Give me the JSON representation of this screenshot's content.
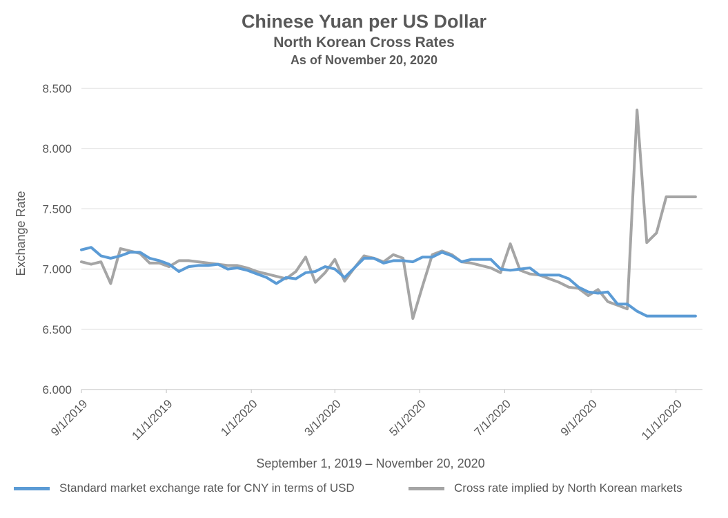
{
  "chart_data": {
    "type": "line",
    "title": "Chinese Yuan per US Dollar",
    "subtitle": "North Korean Cross Rates",
    "subtitle2": "As of November 20, 2020",
    "ylabel": "Exchange Rate",
    "xlabel": "September 1, 2019 – November 20, 2020",
    "ylim": [
      6.0,
      8.5
    ],
    "yticks": [
      "6.000",
      "6.500",
      "7.000",
      "7.500",
      "8.000",
      "8.500"
    ],
    "xticks": [
      "9/1/2019",
      "11/1/2019",
      "1/1/2020",
      "3/1/2020",
      "5/1/2020",
      "7/1/2020",
      "9/1/2020",
      "11/1/2020"
    ],
    "grid": true,
    "legend_position": "bottom",
    "x": [
      "2019-09-01",
      "2019-09-09",
      "2019-09-16",
      "2019-09-23",
      "2019-09-30",
      "2019-10-08",
      "2019-10-15",
      "2019-10-22",
      "2019-10-29",
      "2019-11-06",
      "2019-11-13",
      "2019-11-20",
      "2019-11-28",
      "2019-12-05",
      "2019-12-12",
      "2019-12-19",
      "2019-12-27",
      "2020-01-03",
      "2020-01-10",
      "2020-01-17",
      "2020-01-24",
      "2020-02-01",
      "2020-02-08",
      "2020-02-15",
      "2020-02-22",
      "2020-02-29",
      "2020-03-07",
      "2020-03-14",
      "2020-03-21",
      "2020-03-28",
      "2020-04-04",
      "2020-04-11",
      "2020-04-18",
      "2020-04-25",
      "2020-05-02",
      "2020-05-09",
      "2020-05-16",
      "2020-05-23",
      "2020-05-30",
      "2020-06-07",
      "2020-06-14",
      "2020-06-21",
      "2020-06-28",
      "2020-07-05",
      "2020-07-12",
      "2020-07-20",
      "2020-07-27",
      "2020-08-03",
      "2020-08-10",
      "2020-08-17",
      "2020-08-24",
      "2020-08-31",
      "2020-09-07",
      "2020-09-14",
      "2020-09-22",
      "2020-09-29",
      "2020-10-06",
      "2020-10-13",
      "2020-10-20",
      "2020-10-28",
      "2020-11-04",
      "2020-11-11",
      "2020-11-19"
    ],
    "series": [
      {
        "name": "Standard market exchange rate for CNY in terms of USD",
        "color": "#5b9bd5",
        "x": [
          "2019-09-01",
          "2019-09-08",
          "2019-09-15",
          "2019-09-22",
          "2019-09-29",
          "2019-10-06",
          "2019-10-13",
          "2019-10-20",
          "2019-10-27",
          "2019-11-03",
          "2019-11-10",
          "2019-11-17",
          "2019-11-24",
          "2019-12-01",
          "2019-12-08",
          "2019-12-15",
          "2019-12-22",
          "2019-12-29",
          "2020-01-05",
          "2020-01-12",
          "2020-01-19",
          "2020-01-26",
          "2020-02-02",
          "2020-02-09",
          "2020-02-16",
          "2020-02-23",
          "2020-03-01",
          "2020-03-08",
          "2020-03-15",
          "2020-03-22",
          "2020-03-29",
          "2020-04-05",
          "2020-04-12",
          "2020-04-19",
          "2020-04-26",
          "2020-05-03",
          "2020-05-10",
          "2020-05-17",
          "2020-05-24",
          "2020-05-31",
          "2020-06-07",
          "2020-06-14",
          "2020-06-21",
          "2020-06-28",
          "2020-07-05",
          "2020-07-12",
          "2020-07-19",
          "2020-07-26",
          "2020-08-02",
          "2020-08-09",
          "2020-08-16",
          "2020-08-23",
          "2020-08-30",
          "2020-09-06",
          "2020-09-13",
          "2020-09-20",
          "2020-09-27",
          "2020-10-04",
          "2020-10-11",
          "2020-10-18",
          "2020-10-25",
          "2020-11-01",
          "2020-11-08",
          "2020-11-15"
        ],
        "values": [
          7.16,
          7.18,
          7.11,
          7.09,
          7.11,
          7.14,
          7.14,
          7.09,
          7.07,
          7.04,
          6.98,
          7.02,
          7.03,
          7.03,
          7.04,
          7.0,
          7.01,
          6.99,
          6.96,
          6.93,
          6.88,
          6.93,
          6.92,
          6.97,
          6.98,
          7.02,
          7.0,
          6.93,
          7.01,
          7.09,
          7.09,
          7.05,
          7.07,
          7.07,
          7.06,
          7.1,
          7.1,
          7.14,
          7.11,
          7.06,
          7.08,
          7.08,
          7.08,
          7.0,
          6.99,
          7.0,
          7.01,
          6.95,
          6.95,
          6.95,
          6.92,
          6.85,
          6.81,
          6.8,
          6.81,
          6.71,
          6.71,
          6.65,
          6.61,
          6.61,
          6.61,
          6.61,
          6.61,
          6.61
        ]
      },
      {
        "name": "Cross rate implied by North Korean markets",
        "color": "#a5a5a5",
        "x": [
          "2019-09-01",
          "2019-09-08",
          "2019-09-15",
          "2019-09-22",
          "2019-09-29",
          "2019-10-06",
          "2019-10-13",
          "2019-10-20",
          "2019-10-27",
          "2019-11-03",
          "2019-11-10",
          "2019-11-17",
          "2019-11-24",
          "2019-12-01",
          "2019-12-08",
          "2019-12-15",
          "2019-12-22",
          "2019-12-29",
          "2020-01-05",
          "2020-01-12",
          "2020-01-19",
          "2020-01-26",
          "2020-02-02",
          "2020-02-09",
          "2020-02-16",
          "2020-02-23",
          "2020-03-01",
          "2020-03-08",
          "2020-03-15",
          "2020-03-22",
          "2020-03-29",
          "2020-04-05",
          "2020-04-12",
          "2020-04-19",
          "2020-04-26",
          "2020-05-03",
          "2020-05-10",
          "2020-05-17",
          "2020-05-24",
          "2020-05-31",
          "2020-06-07",
          "2020-06-14",
          "2020-06-21",
          "2020-06-28",
          "2020-07-05",
          "2020-07-12",
          "2020-07-19",
          "2020-07-26",
          "2020-08-02",
          "2020-08-09",
          "2020-08-16",
          "2020-08-23",
          "2020-08-30",
          "2020-09-06",
          "2020-09-13",
          "2020-09-20",
          "2020-09-27",
          "2020-10-04",
          "2020-10-11",
          "2020-10-18",
          "2020-10-25",
          "2020-11-01",
          "2020-11-08",
          "2020-11-15"
        ],
        "values": [
          7.06,
          7.04,
          7.06,
          6.88,
          7.17,
          7.15,
          7.13,
          7.05,
          7.05,
          7.02,
          7.07,
          7.07,
          7.06,
          7.05,
          7.04,
          7.03,
          7.03,
          7.01,
          6.98,
          6.96,
          6.94,
          6.92,
          6.98,
          7.1,
          6.89,
          6.97,
          7.08,
          6.9,
          7.01,
          7.11,
          7.09,
          7.06,
          7.12,
          7.09,
          6.59,
          6.86,
          7.12,
          7.15,
          7.12,
          7.06,
          7.05,
          7.03,
          7.01,
          6.97,
          7.21,
          6.99,
          6.96,
          6.95,
          6.92,
          6.89,
          6.85,
          6.84,
          6.78,
          6.83,
          6.73,
          6.7,
          6.67,
          8.32,
          7.22,
          7.3,
          7.6,
          7.6,
          7.6,
          7.6
        ]
      }
    ]
  }
}
